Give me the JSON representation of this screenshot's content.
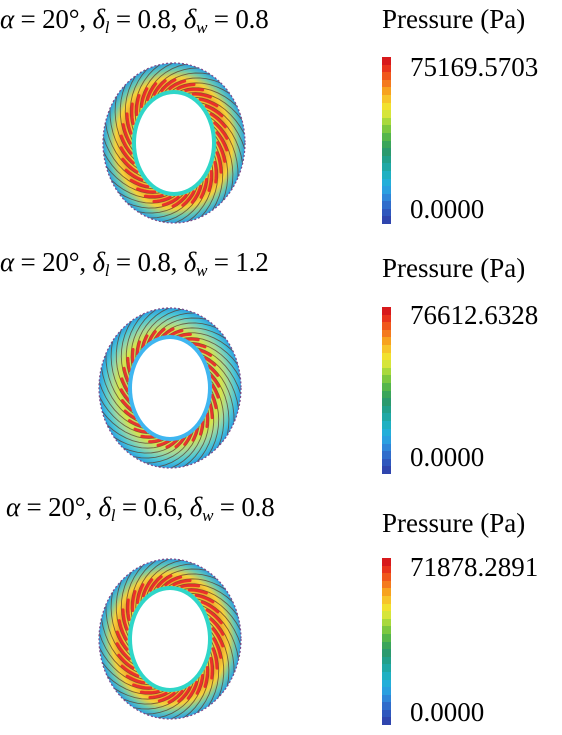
{
  "panels": [
    {
      "title": {
        "alpha_value": "20°",
        "dl_value": "0.8",
        "dw_value": "0.8"
      },
      "legend_title": "Pressure (Pa)",
      "max_label": "75169.5703",
      "min_label": "0.0000",
      "inner_ring_color": "#2fd6c8"
    },
    {
      "title": {
        "alpha_value": "20°",
        "dl_value": "0.8",
        "dw_value": "1.2"
      },
      "legend_title": "Pressure (Pa)",
      "max_label": "76612.6328",
      "min_label": "0.0000",
      "inner_ring_color": "#3fb6f0"
    },
    {
      "title": {
        "alpha_value": "20°",
        "dl_value": "0.6",
        "dw_value": "0.8"
      },
      "legend_title": "Pressure (Pa)",
      "max_label": "71878.2891",
      "min_label": "0.0000",
      "inner_ring_color": "#2fd6c8"
    }
  ],
  "symbols": {
    "alpha": "α",
    "delta": "δ",
    "sub_l": "l",
    "sub_w": "w",
    "equals": " = ",
    "comma": ", "
  },
  "colormap": [
    "#d7191c",
    "#e8331c",
    "#f0571c",
    "#f47a1e",
    "#f7a21f",
    "#f7c42a",
    "#f2e12e",
    "#d6e53a",
    "#a8d93c",
    "#7cc83f",
    "#55b64a",
    "#3aa55a",
    "#2b9a6e",
    "#22a08a",
    "#1fa8a5",
    "#1fb0c2",
    "#23aed9",
    "#2a9fe0",
    "#2f86d9",
    "#2f6ccb",
    "#2f57bd",
    "#2f45ae"
  ]
}
